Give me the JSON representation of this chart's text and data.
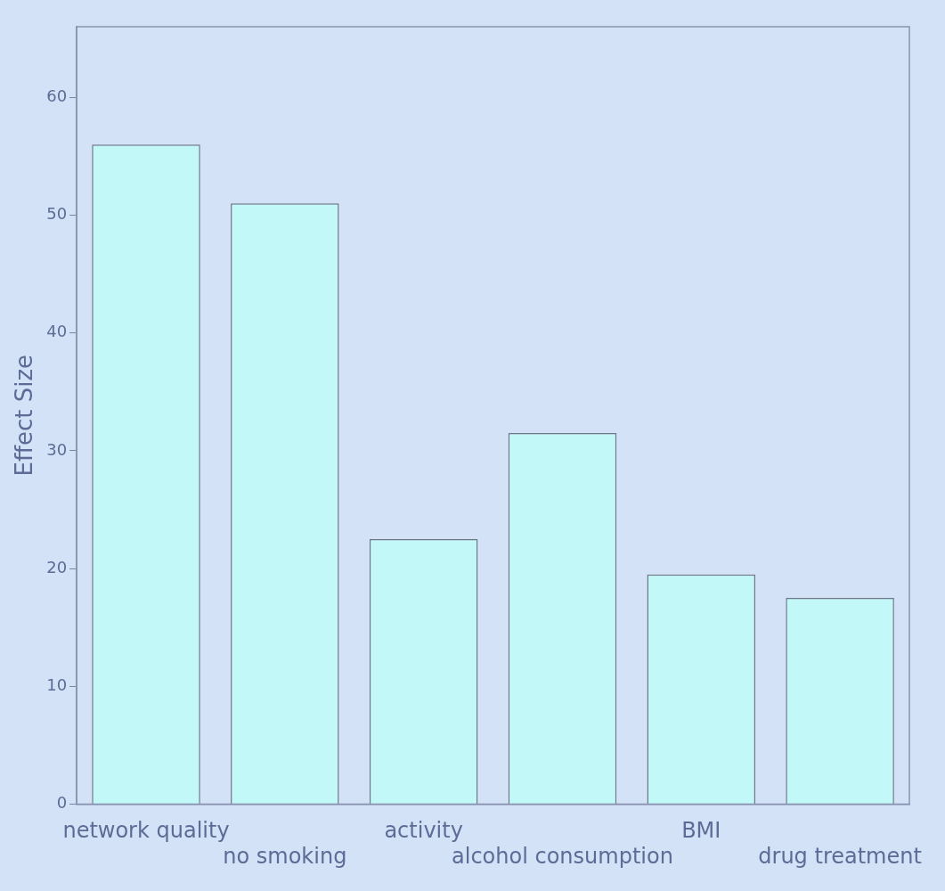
{
  "chart_data": {
    "type": "bar",
    "ylabel": "Effect Size",
    "categories": [
      "network quality",
      "no smoking",
      "activity",
      "alcohol consumption",
      "BMI",
      "drug treatment"
    ],
    "values": [
      56,
      51,
      22.5,
      31.5,
      19.5,
      17.5
    ],
    "color": "#c2f8f8",
    "ylim": [
      0,
      66
    ],
    "yticks": [
      0,
      10,
      20,
      30,
      40,
      50,
      60
    ],
    "grid": false
  }
}
